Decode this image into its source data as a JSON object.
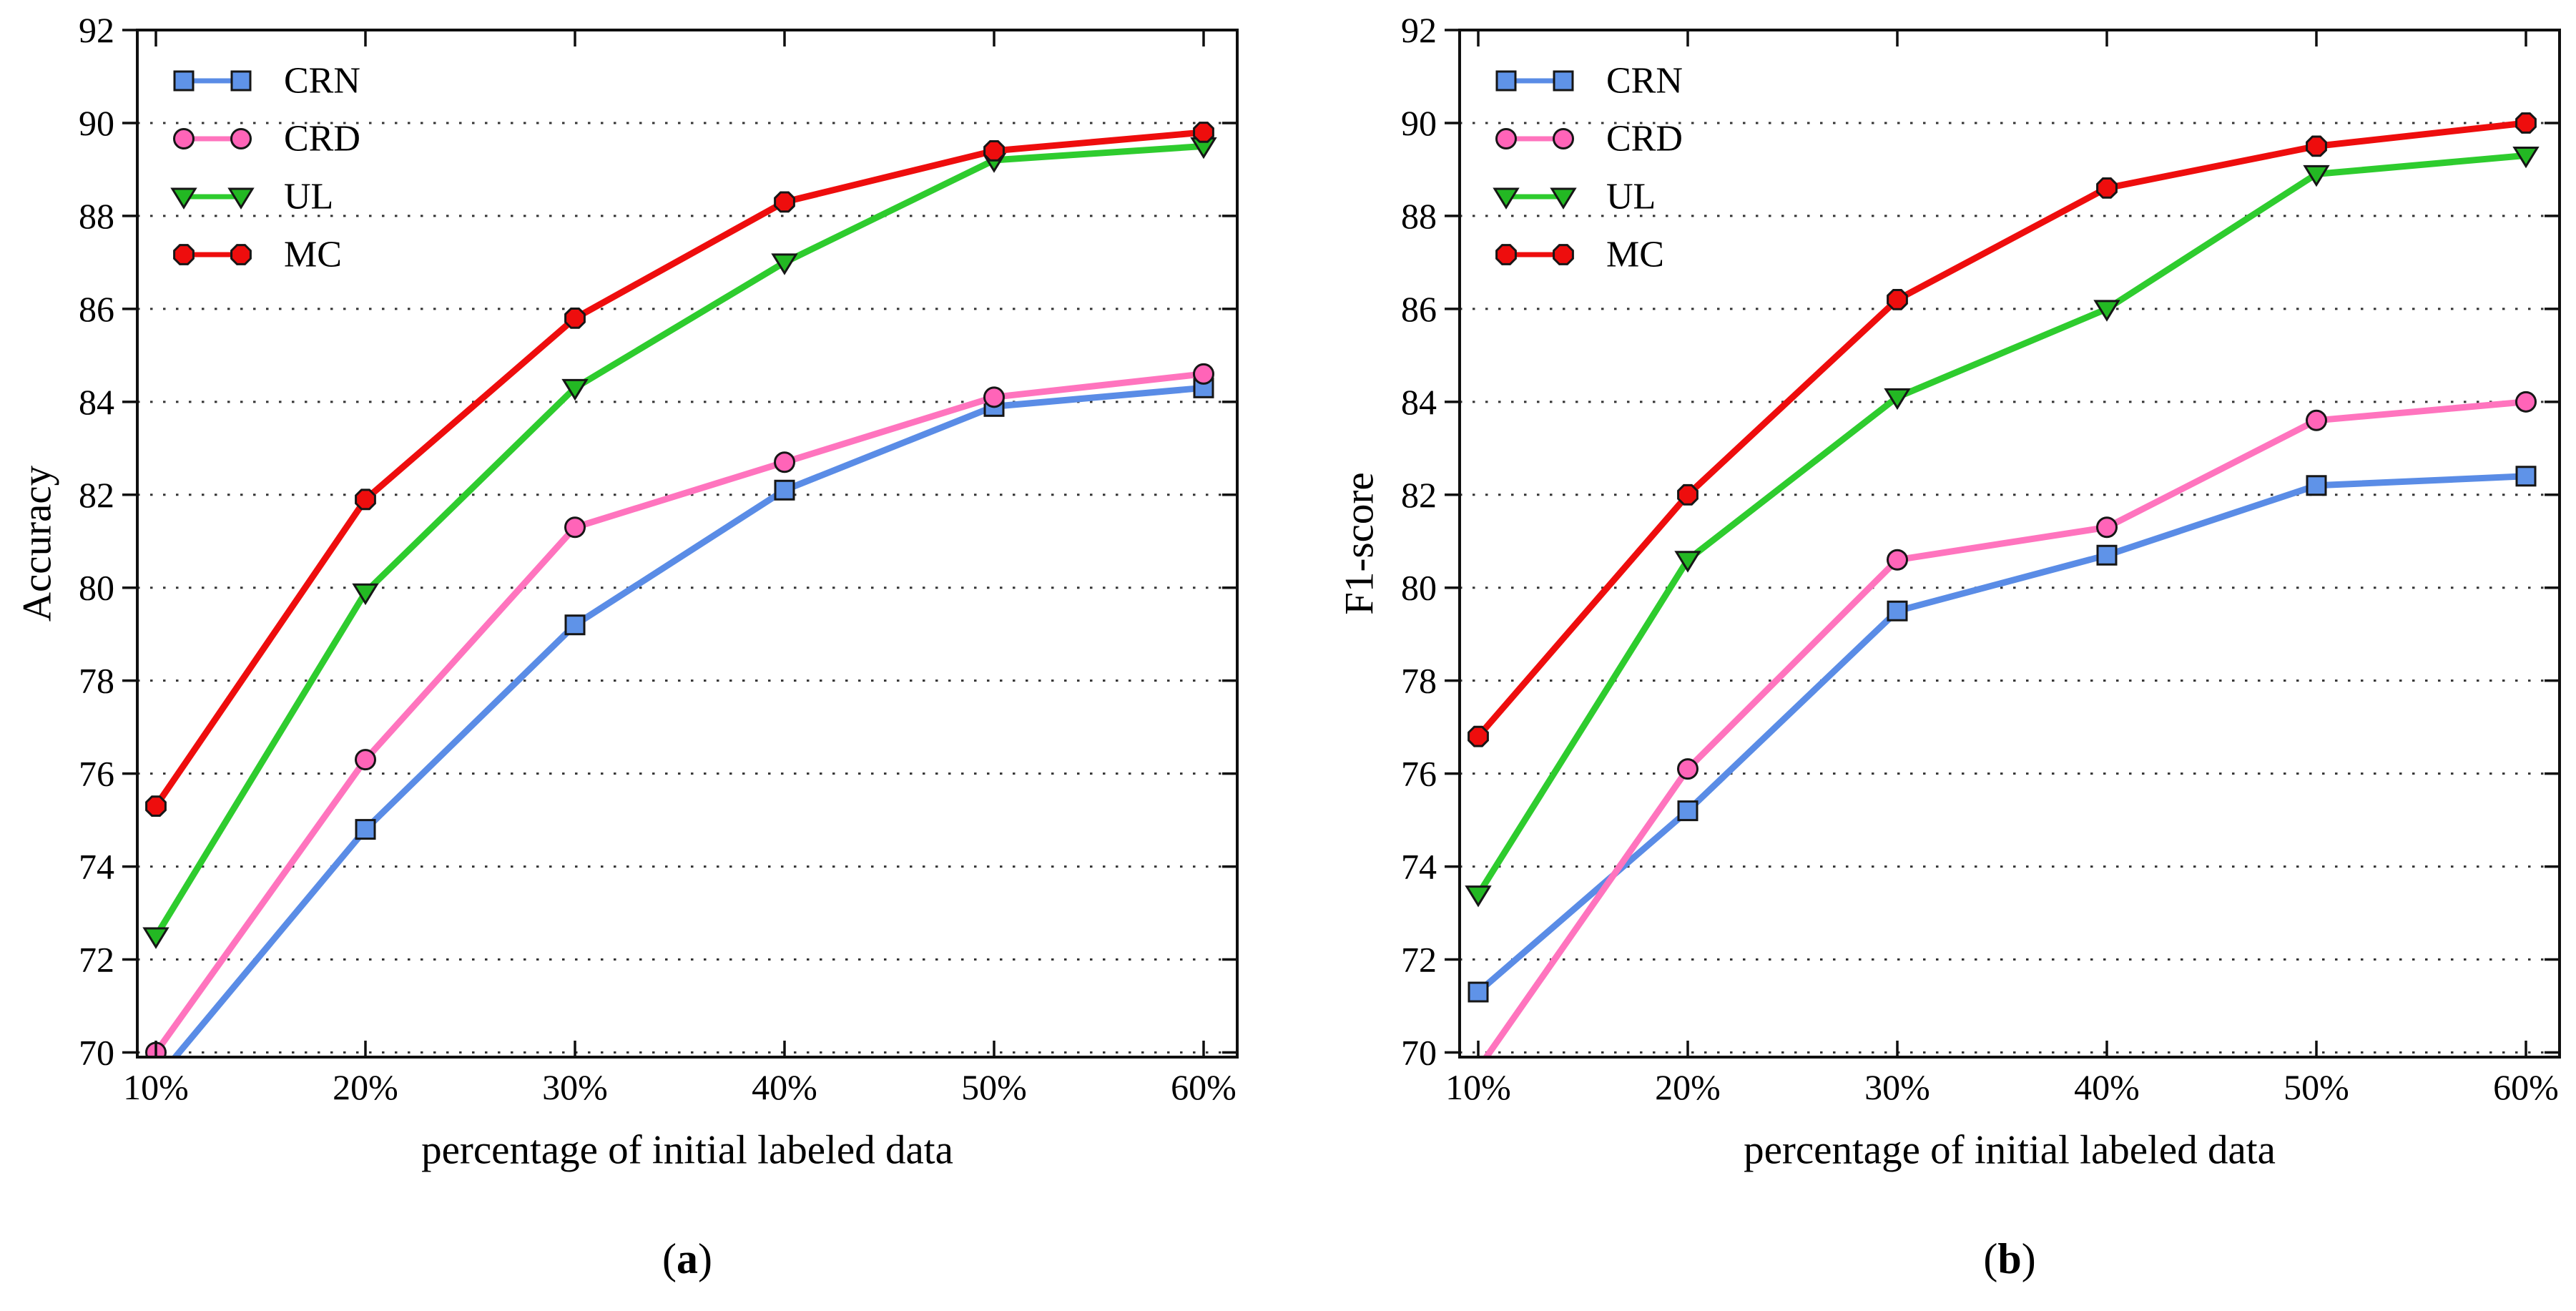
{
  "figure": {
    "background": "#ffffff",
    "captions": [
      {
        "open": "(",
        "letter": "a",
        "close": ")"
      },
      {
        "open": "(",
        "letter": "b",
        "close": ")"
      }
    ]
  },
  "style": {
    "marker_edge_color": "#161616",
    "grid_color": "#343434",
    "spine_color": "#0f0f0f",
    "text_color": "#000000"
  },
  "chart_data": [
    {
      "type": "line",
      "panel": "a",
      "title": "",
      "xlabel": "percentage of initial labeled data",
      "ylabel": "Accuracy",
      "x_tick_labels": [
        "10%",
        "20%",
        "30%",
        "40%",
        "50%",
        "60%"
      ],
      "x_values": [
        10,
        20,
        30,
        40,
        50,
        60
      ],
      "ylim": [
        69.9,
        92
      ],
      "yticks": [
        70,
        72,
        74,
        76,
        78,
        80,
        82,
        84,
        86,
        88,
        90,
        92
      ],
      "grid": "horizontal-dotted",
      "legend_position": "upper-left",
      "legend_entries": [
        "CRN",
        "CRD",
        "UL",
        "MC"
      ],
      "series": [
        {
          "name": "CRN",
          "marker": "square",
          "line_color": "#5a8ce6",
          "marker_fill": "#5f93e8",
          "values": [
            69.4,
            74.8,
            79.2,
            82.1,
            83.9,
            84.3
          ],
          "note": "first point below axis (clipped)"
        },
        {
          "name": "CRD",
          "marker": "circle",
          "line_color": "#ff74be",
          "marker_fill": "#ff64b8",
          "values": [
            70.0,
            76.3,
            81.3,
            82.7,
            84.1,
            84.6
          ]
        },
        {
          "name": "UL",
          "marker": "triangle-down",
          "line_color": "#2ecc2e",
          "marker_fill": "#23b823",
          "values": [
            72.5,
            79.9,
            84.3,
            87.0,
            89.2,
            89.5
          ]
        },
        {
          "name": "MC",
          "marker": "octagon",
          "line_color": "#ee0d0d",
          "marker_fill": "#ee0d0d",
          "values": [
            75.3,
            81.9,
            85.8,
            88.3,
            89.4,
            89.8
          ]
        }
      ]
    },
    {
      "type": "line",
      "panel": "b",
      "title": "",
      "xlabel": "percentage of initial labeled data",
      "ylabel": "F1-score",
      "x_tick_labels": [
        "10%",
        "20%",
        "30%",
        "40%",
        "50%",
        "60%"
      ],
      "x_values": [
        10,
        20,
        30,
        40,
        50,
        60
      ],
      "ylim": [
        69.9,
        92
      ],
      "yticks": [
        70,
        72,
        74,
        76,
        78,
        80,
        82,
        84,
        86,
        88,
        90,
        92
      ],
      "grid": "horizontal-dotted",
      "legend_position": "upper-left",
      "legend_entries": [
        "CRN",
        "CRD",
        "UL",
        "MC"
      ],
      "series": [
        {
          "name": "CRN",
          "marker": "square",
          "line_color": "#5a8ce6",
          "marker_fill": "#5f93e8",
          "values": [
            71.3,
            75.2,
            79.5,
            80.7,
            82.2,
            82.4
          ]
        },
        {
          "name": "CRD",
          "marker": "circle",
          "line_color": "#ff74be",
          "marker_fill": "#ff64b8",
          "values": [
            69.65,
            76.1,
            80.6,
            81.3,
            83.6,
            84.0
          ],
          "note": "first point below axis (clipped)"
        },
        {
          "name": "UL",
          "marker": "triangle-down",
          "line_color": "#2ecc2e",
          "marker_fill": "#23b823",
          "values": [
            73.4,
            80.6,
            84.1,
            86.0,
            88.9,
            89.3
          ]
        },
        {
          "name": "MC",
          "marker": "octagon",
          "line_color": "#ee0d0d",
          "marker_fill": "#ee0d0d",
          "values": [
            76.8,
            82.0,
            86.2,
            88.6,
            89.5,
            90.0
          ]
        }
      ]
    }
  ]
}
